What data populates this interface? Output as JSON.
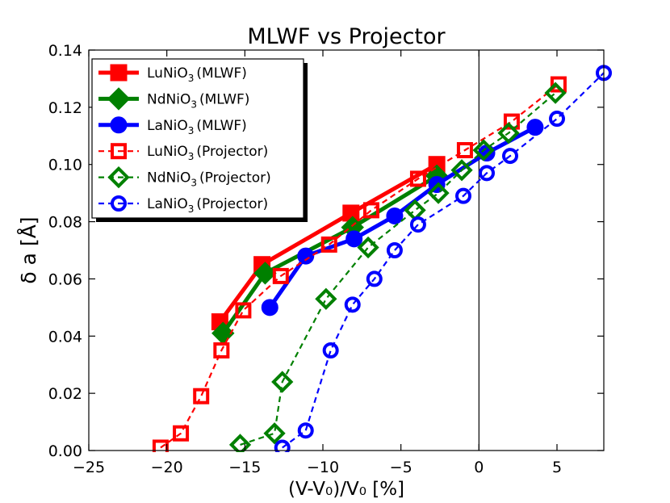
{
  "chart_data": {
    "type": "line",
    "title": "MLWF vs Projector",
    "xlabel": "(V-V₀)/V₀ [%]",
    "ylabel": "δ a [Å]",
    "xlim": [
      -25,
      8
    ],
    "ylim": [
      0,
      0.14
    ],
    "xticks": [
      -25,
      -20,
      -15,
      -10,
      -5,
      0,
      5
    ],
    "xtick_labels": [
      "−25",
      "−20",
      "−15",
      "−10",
      "−5",
      "0",
      "5"
    ],
    "yticks": [
      0,
      0.02,
      0.04,
      0.06,
      0.08,
      0.1,
      0.12,
      0.14
    ],
    "ytick_labels": [
      "0.00",
      "0.02",
      "0.04",
      "0.06",
      "0.08",
      "0.10",
      "0.12",
      "0.14"
    ],
    "vline_x": 0,
    "grid": false,
    "legend_position": "top-left",
    "series": [
      {
        "name": "LuNiO3 (MLWF)",
        "label_base": "LuNiO",
        "label_sub": "3",
        "label_suffix": "(MLWF)",
        "color": "#ff0000",
        "marker": "square",
        "filled": true,
        "linestyle": "solid",
        "x": [
          -16.6,
          -13.9,
          -8.2,
          -2.7
        ],
        "y": [
          0.045,
          0.065,
          0.083,
          0.1
        ]
      },
      {
        "name": "NdNiO3 (MLWF)",
        "label_base": "NdNiO",
        "label_sub": "3",
        "label_suffix": "(MLWF)",
        "color": "#008000",
        "marker": "diamond",
        "filled": true,
        "linestyle": "solid",
        "x": [
          -16.4,
          -13.7,
          -8.1,
          -2.7
        ],
        "y": [
          0.041,
          0.062,
          0.078,
          0.096
        ]
      },
      {
        "name": "LaNiO3 (MLWF)",
        "label_base": "LaNiO",
        "label_sub": "3",
        "label_suffix": "(MLWF)",
        "color": "#0000ff",
        "marker": "circle",
        "filled": true,
        "linestyle": "solid",
        "x": [
          -13.4,
          -11.1,
          -8.0,
          -5.4,
          -2.7,
          0.5,
          3.6
        ],
        "y": [
          0.05,
          0.068,
          0.074,
          0.082,
          0.093,
          0.104,
          0.113
        ]
      },
      {
        "name": "LuNiO3 (Projector)",
        "label_base": "LuNiO",
        "label_sub": "3",
        "label_suffix": "(Projector)",
        "color": "#ff0000",
        "marker": "square",
        "filled": false,
        "linestyle": "dashed",
        "x": [
          -20.4,
          -19.1,
          -17.8,
          -16.5,
          -15.1,
          -12.7,
          -9.6,
          -6.9,
          -3.9,
          -0.9,
          2.1,
          5.1
        ],
        "y": [
          0.001,
          0.006,
          0.019,
          0.035,
          0.049,
          0.061,
          0.072,
          0.084,
          0.095,
          0.105,
          0.115,
          0.128
        ]
      },
      {
        "name": "NdNiO3 (Projector)",
        "label_base": "NdNiO",
        "label_sub": "3",
        "label_suffix": "(Projector)",
        "color": "#008000",
        "marker": "diamond",
        "filled": false,
        "linestyle": "dashed",
        "x": [
          -15.3,
          -13.1,
          -12.6,
          -9.8,
          -7.1,
          -4.1,
          -2.6,
          -1.1,
          0.3,
          1.9,
          4.9
        ],
        "y": [
          0.002,
          0.006,
          0.024,
          0.053,
          0.071,
          0.084,
          0.09,
          0.098,
          0.105,
          0.111,
          0.125
        ]
      },
      {
        "name": "LaNiO3 (Projector)",
        "label_base": "LaNiO",
        "label_sub": "3",
        "label_suffix": "(Projector)",
        "color": "#0000ff",
        "marker": "circle",
        "filled": false,
        "linestyle": "dashed",
        "x": [
          -12.6,
          -11.1,
          -9.5,
          -8.1,
          -6.7,
          -5.4,
          -3.9,
          -1.0,
          0.5,
          2.0,
          5.0,
          8.0
        ],
        "y": [
          0.001,
          0.007,
          0.035,
          0.051,
          0.06,
          0.07,
          0.079,
          0.089,
          0.097,
          0.103,
          0.116,
          0.132
        ]
      }
    ]
  }
}
